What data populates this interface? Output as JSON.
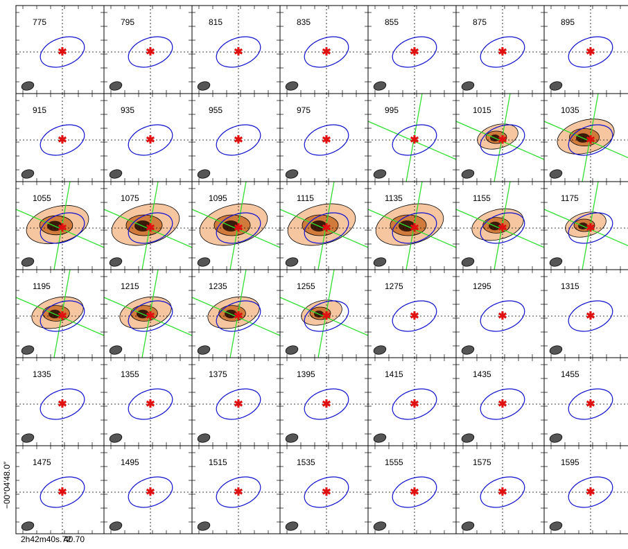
{
  "panels": [
    "775",
    "795",
    "815",
    "835",
    "855",
    "875",
    "895",
    "915",
    "935",
    "955",
    "975",
    "995",
    "1015",
    "1035",
    "1055",
    "1075",
    "1095",
    "1115",
    "1135",
    "1155",
    "1175",
    "1195",
    "1215",
    "1235",
    "1255",
    "1275",
    "1295",
    "1315",
    "1335",
    "1355",
    "1375",
    "1395",
    "1415",
    "1435",
    "1455",
    "1475",
    "1495",
    "1515",
    "1535",
    "1555",
    "1575",
    "1595"
  ],
  "axes": {
    "y_label": "−00°04′48.0″",
    "x_labels": [
      "2h42m40s.72",
      "40.70"
    ]
  }
}
